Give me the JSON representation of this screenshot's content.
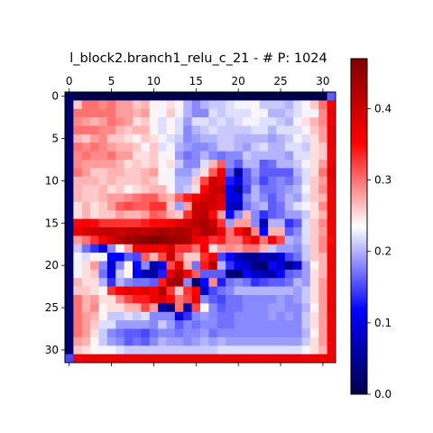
{
  "chart_data": {
    "type": "heatmap",
    "title": "l_block2.branch1_relu_c_21 - # P: 1024",
    "rows": 32,
    "cols": 32,
    "x_ticks": [
      0,
      5,
      10,
      15,
      20,
      25,
      30
    ],
    "y_ticks": [
      0,
      5,
      10,
      15,
      20,
      25,
      30
    ],
    "x_axis_position": "top",
    "colormap": "seismic",
    "colorbar": {
      "vmin": 0.0,
      "vmax": 0.47,
      "ticks": [
        "0.0",
        "0.1",
        "0.2",
        "0.3",
        "0.4"
      ],
      "tick_values": [
        0.0,
        0.1,
        0.2,
        0.3,
        0.4
      ]
    },
    "grid": false,
    "values": [
      [
        0.02,
        0.0,
        0.0,
        0.0,
        0.0,
        0.0,
        0.0,
        0.0,
        0.0,
        0.0,
        0.0,
        0.0,
        0.0,
        0.0,
        0.0,
        0.0,
        0.0,
        0.0,
        0.0,
        0.0,
        0.0,
        0.0,
        0.0,
        0.0,
        0.0,
        0.0,
        0.0,
        0.0,
        0.0,
        0.0,
        0.0,
        0.16
      ],
      [
        0.02,
        0.26,
        0.3,
        0.3,
        0.29,
        0.3,
        0.28,
        0.28,
        0.26,
        0.27,
        0.24,
        0.23,
        0.25,
        0.24,
        0.2,
        0.18,
        0.2,
        0.21,
        0.21,
        0.22,
        0.23,
        0.23,
        0.24,
        0.21,
        0.21,
        0.21,
        0.2,
        0.22,
        0.24,
        0.26,
        0.3,
        0.36
      ],
      [
        0.02,
        0.3,
        0.3,
        0.3,
        0.3,
        0.3,
        0.28,
        0.28,
        0.27,
        0.28,
        0.24,
        0.23,
        0.26,
        0.23,
        0.2,
        0.18,
        0.18,
        0.22,
        0.21,
        0.22,
        0.22,
        0.22,
        0.24,
        0.23,
        0.2,
        0.2,
        0.21,
        0.22,
        0.23,
        0.23,
        0.29,
        0.37
      ],
      [
        0.02,
        0.29,
        0.28,
        0.27,
        0.28,
        0.3,
        0.29,
        0.28,
        0.25,
        0.26,
        0.24,
        0.22,
        0.24,
        0.22,
        0.19,
        0.22,
        0.22,
        0.21,
        0.22,
        0.21,
        0.22,
        0.23,
        0.23,
        0.22,
        0.22,
        0.21,
        0.2,
        0.23,
        0.25,
        0.27,
        0.29,
        0.36
      ],
      [
        0.02,
        0.3,
        0.3,
        0.3,
        0.29,
        0.29,
        0.27,
        0.26,
        0.27,
        0.27,
        0.24,
        0.22,
        0.24,
        0.22,
        0.18,
        0.2,
        0.21,
        0.22,
        0.21,
        0.21,
        0.21,
        0.21,
        0.22,
        0.22,
        0.2,
        0.22,
        0.22,
        0.22,
        0.24,
        0.26,
        0.28,
        0.37
      ],
      [
        0.02,
        0.27,
        0.26,
        0.28,
        0.29,
        0.26,
        0.26,
        0.25,
        0.24,
        0.26,
        0.25,
        0.23,
        0.22,
        0.21,
        0.18,
        0.19,
        0.2,
        0.2,
        0.21,
        0.21,
        0.2,
        0.2,
        0.2,
        0.2,
        0.19,
        0.2,
        0.21,
        0.23,
        0.22,
        0.25,
        0.28,
        0.37
      ],
      [
        0.02,
        0.3,
        0.29,
        0.3,
        0.29,
        0.28,
        0.27,
        0.27,
        0.26,
        0.23,
        0.26,
        0.22,
        0.23,
        0.2,
        0.19,
        0.18,
        0.18,
        0.19,
        0.21,
        0.21,
        0.2,
        0.19,
        0.21,
        0.22,
        0.2,
        0.2,
        0.22,
        0.22,
        0.21,
        0.25,
        0.26,
        0.37
      ],
      [
        0.02,
        0.29,
        0.3,
        0.29,
        0.29,
        0.3,
        0.28,
        0.28,
        0.25,
        0.25,
        0.26,
        0.23,
        0.24,
        0.19,
        0.17,
        0.18,
        0.2,
        0.18,
        0.17,
        0.18,
        0.18,
        0.21,
        0.2,
        0.2,
        0.2,
        0.2,
        0.19,
        0.22,
        0.22,
        0.25,
        0.26,
        0.36
      ],
      [
        0.02,
        0.29,
        0.28,
        0.28,
        0.28,
        0.28,
        0.27,
        0.25,
        0.26,
        0.25,
        0.26,
        0.24,
        0.25,
        0.21,
        0.18,
        0.18,
        0.22,
        0.27,
        0.31,
        0.18,
        0.16,
        0.2,
        0.2,
        0.16,
        0.17,
        0.2,
        0.2,
        0.21,
        0.23,
        0.25,
        0.28,
        0.37
      ],
      [
        0.02,
        0.3,
        0.28,
        0.26,
        0.26,
        0.27,
        0.27,
        0.26,
        0.26,
        0.27,
        0.28,
        0.24,
        0.23,
        0.19,
        0.19,
        0.21,
        0.25,
        0.31,
        0.37,
        0.16,
        0.05,
        0.16,
        0.19,
        0.16,
        0.16,
        0.16,
        0.16,
        0.2,
        0.22,
        0.25,
        0.3,
        0.38
      ],
      [
        0.02,
        0.27,
        0.27,
        0.27,
        0.26,
        0.27,
        0.26,
        0.26,
        0.26,
        0.27,
        0.26,
        0.24,
        0.23,
        0.2,
        0.2,
        0.26,
        0.32,
        0.4,
        0.38,
        0.13,
        0.1,
        0.16,
        0.18,
        0.15,
        0.17,
        0.18,
        0.17,
        0.19,
        0.22,
        0.26,
        0.28,
        0.37
      ],
      [
        0.02,
        0.27,
        0.26,
        0.26,
        0.27,
        0.25,
        0.26,
        0.24,
        0.25,
        0.26,
        0.27,
        0.27,
        0.24,
        0.2,
        0.21,
        0.25,
        0.35,
        0.4,
        0.41,
        0.11,
        0.05,
        0.15,
        0.2,
        0.17,
        0.17,
        0.18,
        0.19,
        0.2,
        0.23,
        0.26,
        0.29,
        0.36
      ],
      [
        0.02,
        0.27,
        0.26,
        0.26,
        0.27,
        0.28,
        0.28,
        0.29,
        0.3,
        0.31,
        0.31,
        0.28,
        0.27,
        0.31,
        0.34,
        0.36,
        0.39,
        0.4,
        0.38,
        0.1,
        0.1,
        0.18,
        0.2,
        0.18,
        0.16,
        0.18,
        0.2,
        0.19,
        0.22,
        0.26,
        0.27,
        0.36
      ],
      [
        0.02,
        0.25,
        0.27,
        0.25,
        0.26,
        0.28,
        0.31,
        0.32,
        0.31,
        0.31,
        0.33,
        0.33,
        0.26,
        0.19,
        0.28,
        0.4,
        0.41,
        0.39,
        0.37,
        0.08,
        0.07,
        0.17,
        0.19,
        0.2,
        0.16,
        0.17,
        0.2,
        0.22,
        0.23,
        0.25,
        0.29,
        0.36
      ],
      [
        0.02,
        0.25,
        0.27,
        0.25,
        0.26,
        0.26,
        0.28,
        0.27,
        0.27,
        0.28,
        0.31,
        0.3,
        0.27,
        0.26,
        0.33,
        0.4,
        0.42,
        0.35,
        0.28,
        0.12,
        0.18,
        0.27,
        0.18,
        0.14,
        0.16,
        0.17,
        0.19,
        0.19,
        0.21,
        0.25,
        0.27,
        0.36
      ],
      [
        0.02,
        0.35,
        0.36,
        0.35,
        0.33,
        0.33,
        0.33,
        0.33,
        0.33,
        0.34,
        0.35,
        0.35,
        0.36,
        0.38,
        0.4,
        0.42,
        0.43,
        0.4,
        0.33,
        0.19,
        0.28,
        0.28,
        0.18,
        0.07,
        0.2,
        0.2,
        0.14,
        0.16,
        0.22,
        0.26,
        0.29,
        0.36
      ],
      [
        0.02,
        0.37,
        0.39,
        0.4,
        0.41,
        0.41,
        0.4,
        0.41,
        0.42,
        0.41,
        0.42,
        0.44,
        0.42,
        0.43,
        0.42,
        0.39,
        0.43,
        0.42,
        0.37,
        0.3,
        0.35,
        0.4,
        0.29,
        0.12,
        0.27,
        0.27,
        0.16,
        0.18,
        0.22,
        0.26,
        0.28,
        0.36
      ],
      [
        0.02,
        0.28,
        0.3,
        0.33,
        0.36,
        0.39,
        0.42,
        0.44,
        0.45,
        0.46,
        0.47,
        0.46,
        0.45,
        0.44,
        0.43,
        0.37,
        0.36,
        0.33,
        0.34,
        0.3,
        0.3,
        0.34,
        0.37,
        0.3,
        0.36,
        0.32,
        0.2,
        0.19,
        0.22,
        0.26,
        0.29,
        0.35
      ],
      [
        0.02,
        0.21,
        0.17,
        0.14,
        0.1,
        0.18,
        0.24,
        0.28,
        0.36,
        0.37,
        0.37,
        0.36,
        0.39,
        0.33,
        0.33,
        0.3,
        0.36,
        0.25,
        0.28,
        0.29,
        0.28,
        0.3,
        0.3,
        0.27,
        0.21,
        0.19,
        0.19,
        0.18,
        0.21,
        0.26,
        0.29,
        0.36
      ],
      [
        0.02,
        0.23,
        0.22,
        0.24,
        0.23,
        0.12,
        0.11,
        0.16,
        0.15,
        0.31,
        0.27,
        0.32,
        0.4,
        0.31,
        0.26,
        0.26,
        0.33,
        0.36,
        0.15,
        0.12,
        0.07,
        0.05,
        0.05,
        0.07,
        0.06,
        0.09,
        0.15,
        0.17,
        0.21,
        0.26,
        0.27,
        0.36
      ],
      [
        0.02,
        0.23,
        0.25,
        0.28,
        0.18,
        0.09,
        0.18,
        0.24,
        0.12,
        0.18,
        0.06,
        0.1,
        0.32,
        0.38,
        0.27,
        0.17,
        0.34,
        0.42,
        0.2,
        0.14,
        0.1,
        0.08,
        0.04,
        0.02,
        0.12,
        0.09,
        0.04,
        0.09,
        0.19,
        0.24,
        0.27,
        0.36
      ],
      [
        0.02,
        0.23,
        0.25,
        0.26,
        0.17,
        0.1,
        0.21,
        0.24,
        0.11,
        0.07,
        0.05,
        0.13,
        0.37,
        0.42,
        0.36,
        0.31,
        0.16,
        0.16,
        0.16,
        0.03,
        0.02,
        0.12,
        0.08,
        0.07,
        0.06,
        0.12,
        0.16,
        0.17,
        0.19,
        0.25,
        0.27,
        0.36
      ],
      [
        0.02,
        0.27,
        0.25,
        0.25,
        0.2,
        0.14,
        0.2,
        0.18,
        0.17,
        0.17,
        0.16,
        0.34,
        0.43,
        0.44,
        0.18,
        0.02,
        0.12,
        0.29,
        0.13,
        0.17,
        0.18,
        0.17,
        0.14,
        0.15,
        0.16,
        0.16,
        0.17,
        0.2,
        0.19,
        0.25,
        0.28,
        0.36
      ],
      [
        0.02,
        0.26,
        0.26,
        0.25,
        0.24,
        0.33,
        0.36,
        0.38,
        0.37,
        0.38,
        0.36,
        0.42,
        0.33,
        0.26,
        0.33,
        0.36,
        0.08,
        0.15,
        0.17,
        0.18,
        0.2,
        0.2,
        0.2,
        0.2,
        0.2,
        0.2,
        0.2,
        0.19,
        0.21,
        0.25,
        0.28,
        0.36
      ],
      [
        0.02,
        0.3,
        0.27,
        0.28,
        0.25,
        0.25,
        0.29,
        0.32,
        0.34,
        0.34,
        0.37,
        0.38,
        0.35,
        0.3,
        0.32,
        0.37,
        0.18,
        0.16,
        0.15,
        0.17,
        0.17,
        0.18,
        0.18,
        0.18,
        0.18,
        0.19,
        0.18,
        0.19,
        0.21,
        0.25,
        0.28,
        0.36
      ],
      [
        0.02,
        0.3,
        0.27,
        0.29,
        0.24,
        0.25,
        0.25,
        0.27,
        0.27,
        0.32,
        0.28,
        0.07,
        0.03,
        0.3,
        0.06,
        0.32,
        0.24,
        0.18,
        0.16,
        0.17,
        0.17,
        0.18,
        0.18,
        0.18,
        0.19,
        0.19,
        0.18,
        0.18,
        0.2,
        0.24,
        0.28,
        0.37
      ],
      [
        0.02,
        0.3,
        0.28,
        0.27,
        0.24,
        0.21,
        0.21,
        0.22,
        0.21,
        0.22,
        0.18,
        0.18,
        0.18,
        0.09,
        0.14,
        0.18,
        0.19,
        0.18,
        0.17,
        0.17,
        0.18,
        0.18,
        0.18,
        0.18,
        0.19,
        0.18,
        0.19,
        0.18,
        0.21,
        0.25,
        0.28,
        0.36
      ],
      [
        0.02,
        0.3,
        0.28,
        0.26,
        0.22,
        0.22,
        0.19,
        0.19,
        0.19,
        0.19,
        0.18,
        0.21,
        0.19,
        0.16,
        0.18,
        0.17,
        0.18,
        0.18,
        0.17,
        0.17,
        0.18,
        0.18,
        0.18,
        0.18,
        0.18,
        0.18,
        0.18,
        0.18,
        0.21,
        0.25,
        0.28,
        0.36
      ],
      [
        0.02,
        0.3,
        0.28,
        0.25,
        0.21,
        0.18,
        0.17,
        0.16,
        0.16,
        0.15,
        0.17,
        0.18,
        0.18,
        0.17,
        0.18,
        0.18,
        0.19,
        0.17,
        0.18,
        0.18,
        0.18,
        0.18,
        0.18,
        0.18,
        0.18,
        0.18,
        0.18,
        0.18,
        0.2,
        0.24,
        0.28,
        0.36
      ],
      [
        0.02,
        0.28,
        0.27,
        0.24,
        0.21,
        0.19,
        0.18,
        0.16,
        0.17,
        0.16,
        0.18,
        0.2,
        0.19,
        0.19,
        0.18,
        0.19,
        0.2,
        0.19,
        0.2,
        0.19,
        0.19,
        0.19,
        0.19,
        0.19,
        0.19,
        0.19,
        0.19,
        0.19,
        0.21,
        0.25,
        0.28,
        0.36
      ],
      [
        0.02,
        0.26,
        0.25,
        0.24,
        0.23,
        0.23,
        0.22,
        0.21,
        0.21,
        0.21,
        0.21,
        0.21,
        0.21,
        0.21,
        0.21,
        0.21,
        0.21,
        0.21,
        0.22,
        0.22,
        0.22,
        0.22,
        0.22,
        0.22,
        0.22,
        0.22,
        0.22,
        0.22,
        0.23,
        0.25,
        0.27,
        0.36
      ],
      [
        0.15,
        0.37,
        0.37,
        0.37,
        0.37,
        0.37,
        0.37,
        0.37,
        0.37,
        0.37,
        0.37,
        0.37,
        0.37,
        0.37,
        0.37,
        0.37,
        0.37,
        0.37,
        0.37,
        0.37,
        0.37,
        0.37,
        0.37,
        0.37,
        0.37,
        0.37,
        0.37,
        0.37,
        0.37,
        0.37,
        0.37,
        0.37
      ]
    ]
  }
}
